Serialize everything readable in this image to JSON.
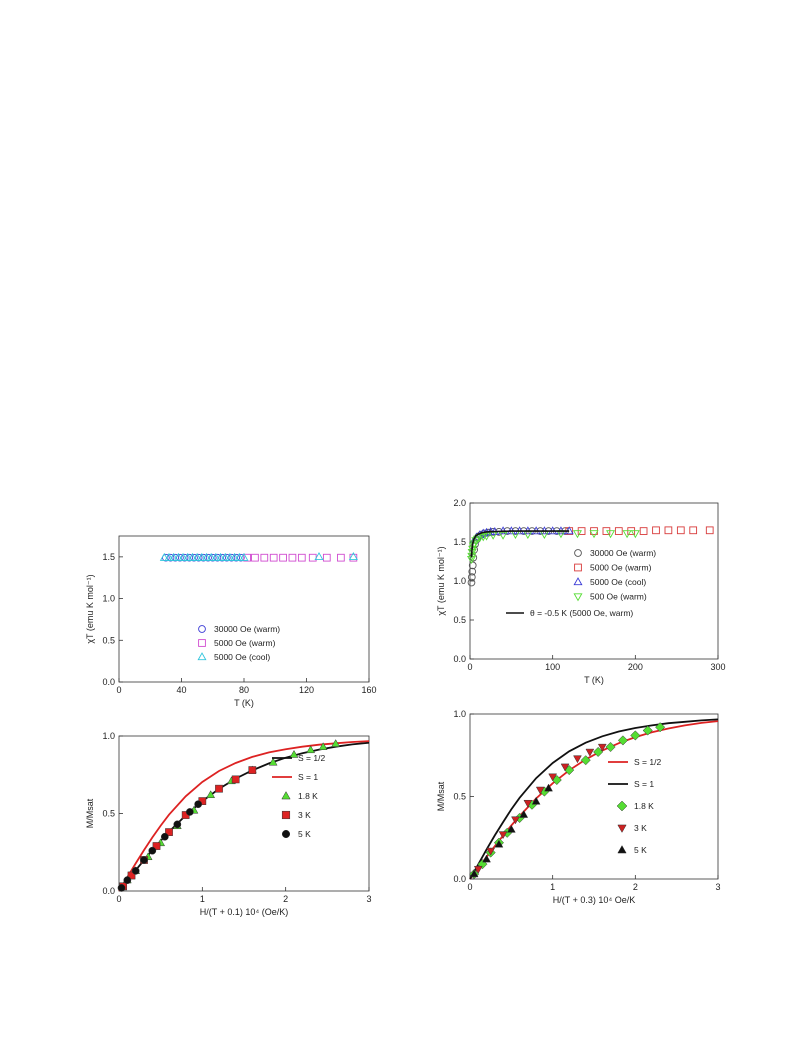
{
  "chart_data": [
    {
      "type": "scatter",
      "xlabel": "T (K)",
      "ylabel": "χT (emu K mol⁻¹)",
      "xlim": [
        0,
        160
      ],
      "ylim": [
        0,
        1.75
      ],
      "xticks": [
        "0",
        "40",
        "80",
        "120",
        "160"
      ],
      "yticks": [
        "0.0",
        "0.5",
        "1.0",
        "1.5"
      ],
      "legend_position": "bottom-center",
      "series": [
        {
          "name": "30000 Oe (warm)",
          "color": "#3b3bd6",
          "marker": "circle",
          "x": [
            30,
            33,
            36,
            39,
            42,
            45,
            48,
            51,
            54,
            57,
            60,
            63,
            66,
            69,
            72,
            75,
            78
          ],
          "y": [
            1.49,
            1.49,
            1.49,
            1.49,
            1.49,
            1.49,
            1.49,
            1.49,
            1.49,
            1.49,
            1.49,
            1.49,
            1.49,
            1.49,
            1.49,
            1.49,
            1.49
          ]
        },
        {
          "name": "5000 Oe (warm)",
          "color": "#d04bd0",
          "marker": "square",
          "x": [
            82,
            87,
            93,
            99,
            105,
            111,
            117,
            124,
            133,
            142,
            150
          ],
          "y": [
            1.49,
            1.49,
            1.49,
            1.49,
            1.49,
            1.49,
            1.49,
            1.49,
            1.49,
            1.49,
            1.49
          ]
        },
        {
          "name": "5000 Oe (cool)",
          "color": "#33c6dd",
          "marker": "triangle",
          "x": [
            29,
            32,
            35,
            38,
            41,
            44,
            47,
            50,
            53,
            56,
            59,
            62,
            65,
            68,
            71,
            74,
            77,
            80,
            128,
            150
          ],
          "y": [
            1.49,
            1.49,
            1.49,
            1.49,
            1.49,
            1.49,
            1.49,
            1.49,
            1.49,
            1.49,
            1.49,
            1.49,
            1.49,
            1.49,
            1.49,
            1.49,
            1.49,
            1.49,
            1.5,
            1.5
          ]
        }
      ]
    },
    {
      "type": "scatter",
      "xlabel": "T (K)",
      "ylabel": "χT (emu K mol⁻¹)",
      "xlim": [
        0,
        300
      ],
      "ylim": [
        0,
        2.0
      ],
      "xticks": [
        "0",
        "100",
        "200",
        "300"
      ],
      "yticks": [
        "0.0",
        "0.5",
        "1.0",
        "1.5",
        "2.0"
      ],
      "legend_position": "center-right",
      "series": [
        {
          "name": "30000 Oe (warm)",
          "color": "#555555",
          "marker": "circle",
          "x": [
            1.8,
            2.2,
            2.7,
            3.3,
            4,
            5,
            6,
            8,
            10,
            13,
            17,
            22,
            28,
            35,
            45,
            55,
            65,
            75,
            85,
            95,
            105,
            115
          ],
          "y": [
            0.98,
            1.05,
            1.12,
            1.2,
            1.3,
            1.4,
            1.47,
            1.53,
            1.57,
            1.59,
            1.61,
            1.62,
            1.63,
            1.63,
            1.64,
            1.64,
            1.64,
            1.64,
            1.64,
            1.64,
            1.64,
            1.64
          ]
        },
        {
          "name": "5000 Oe (warm)",
          "color": "#d83a3a",
          "marker": "square",
          "x": [
            120,
            135,
            150,
            165,
            180,
            195,
            210,
            225,
            240,
            255,
            270,
            290
          ],
          "y": [
            1.64,
            1.64,
            1.64,
            1.64,
            1.64,
            1.64,
            1.64,
            1.65,
            1.65,
            1.65,
            1.65,
            1.65
          ]
        },
        {
          "name": "5000 Oe (cool)",
          "color": "#3b3bd6",
          "marker": "triangle",
          "x": [
            5,
            8,
            12,
            16,
            20,
            25,
            30,
            40,
            50,
            60,
            70,
            80,
            90,
            100,
            110,
            120
          ],
          "y": [
            1.52,
            1.56,
            1.59,
            1.61,
            1.62,
            1.63,
            1.63,
            1.64,
            1.64,
            1.64,
            1.64,
            1.64,
            1.64,
            1.64,
            1.64,
            1.64
          ]
        },
        {
          "name": "500 Oe (warm)",
          "color": "#55dd33",
          "marker": "triangle-down",
          "x": [
            1.8,
            2.2,
            2.6,
            3.2,
            4,
            5,
            7,
            9,
            12,
            16,
            20,
            28,
            40,
            55,
            70,
            90,
            110,
            130,
            150,
            170,
            190,
            200
          ],
          "y": [
            1.28,
            1.32,
            1.37,
            1.41,
            1.45,
            1.48,
            1.52,
            1.54,
            1.56,
            1.57,
            1.58,
            1.59,
            1.59,
            1.6,
            1.6,
            1.6,
            1.61,
            1.61,
            1.61,
            1.61,
            1.61,
            1.61
          ]
        }
      ],
      "curve": {
        "name": "θ = -0.5 K (5000 Oe, warm)",
        "color": "#111111",
        "x": [
          1.8,
          2,
          2.5,
          3,
          4,
          5,
          7,
          10,
          15,
          20,
          30,
          50,
          80,
          120
        ],
        "y": [
          1.3,
          1.34,
          1.41,
          1.46,
          1.51,
          1.54,
          1.58,
          1.6,
          1.62,
          1.63,
          1.635,
          1.64,
          1.64,
          1.64
        ]
      }
    },
    {
      "type": "scatter",
      "xlabel": "H/(T + 0.1) 10⁴ (Oe/K)",
      "ylabel": "M/Msat",
      "xlim": [
        0,
        3
      ],
      "ylim": [
        0,
        1.0
      ],
      "xticks": [
        "0",
        "1",
        "2",
        "3"
      ],
      "yticks": [
        "0.0",
        "0.5",
        "1.0"
      ],
      "legend_position": "right",
      "lines": [
        {
          "name": "S = 1/2",
          "color": "#111111",
          "x": [
            0,
            0.1,
            0.2,
            0.3,
            0.4,
            0.5,
            0.6,
            0.8,
            1.0,
            1.2,
            1.4,
            1.6,
            1.8,
            2.0,
            2.2,
            2.4,
            2.6,
            2.8,
            3.0
          ],
          "y": [
            0,
            0.067,
            0.134,
            0.199,
            0.263,
            0.324,
            0.382,
            0.488,
            0.58,
            0.659,
            0.725,
            0.779,
            0.823,
            0.86,
            0.889,
            0.912,
            0.931,
            0.946,
            0.957
          ]
        },
        {
          "name": "S = 1",
          "color": "#dd2222",
          "x": [
            0,
            0.1,
            0.2,
            0.3,
            0.4,
            0.5,
            0.6,
            0.8,
            1.0,
            1.2,
            1.4,
            1.6,
            1.8,
            2.0,
            2.2,
            2.4,
            2.6,
            2.8,
            3.0
          ],
          "y": [
            0,
            0.089,
            0.178,
            0.264,
            0.345,
            0.422,
            0.492,
            0.611,
            0.703,
            0.774,
            0.826,
            0.865,
            0.894,
            0.915,
            0.931,
            0.944,
            0.953,
            0.961,
            0.967
          ]
        }
      ],
      "series": [
        {
          "name": "1.8 K",
          "color": "#55dd33",
          "marker": "triangle",
          "x": [
            0.1,
            0.2,
            0.35,
            0.5,
            0.7,
            0.9,
            1.1,
            1.35,
            1.6,
            1.85,
            2.1,
            2.3,
            2.45,
            2.6
          ],
          "y": [
            0.07,
            0.13,
            0.22,
            0.31,
            0.42,
            0.52,
            0.62,
            0.71,
            0.78,
            0.83,
            0.88,
            0.91,
            0.93,
            0.95
          ]
        },
        {
          "name": "3 K",
          "color": "#dd2222",
          "marker": "square",
          "x": [
            0.05,
            0.15,
            0.3,
            0.45,
            0.6,
            0.8,
            1.0,
            1.2,
            1.4,
            1.6
          ],
          "y": [
            0.03,
            0.1,
            0.2,
            0.29,
            0.38,
            0.49,
            0.58,
            0.66,
            0.72,
            0.78
          ]
        },
        {
          "name": "5 K",
          "color": "#111111",
          "marker": "circle",
          "x": [
            0.03,
            0.1,
            0.2,
            0.3,
            0.4,
            0.55,
            0.7,
            0.85,
            0.95
          ],
          "y": [
            0.02,
            0.07,
            0.13,
            0.2,
            0.26,
            0.35,
            0.43,
            0.51,
            0.56
          ]
        }
      ]
    },
    {
      "type": "scatter",
      "xlabel": "H/(T + 0.3) 10⁴ Oe/K",
      "ylabel": "M/Msat",
      "xlim": [
        0,
        3
      ],
      "ylim": [
        0,
        1.0
      ],
      "xticks": [
        "0",
        "1",
        "2",
        "3"
      ],
      "yticks": [
        "0.0",
        "0.5",
        "1.0"
      ],
      "legend_position": "right",
      "lines": [
        {
          "name": "S = 1/2",
          "color": "#dd2222",
          "x": [
            0,
            0.1,
            0.2,
            0.3,
            0.4,
            0.5,
            0.6,
            0.8,
            1.0,
            1.2,
            1.4,
            1.6,
            1.8,
            2.0,
            2.2,
            2.4,
            2.6,
            2.8,
            3.0
          ],
          "y": [
            0,
            0.067,
            0.134,
            0.199,
            0.263,
            0.324,
            0.382,
            0.488,
            0.58,
            0.659,
            0.725,
            0.779,
            0.823,
            0.86,
            0.889,
            0.912,
            0.931,
            0.946,
            0.957
          ]
        },
        {
          "name": "S = 1",
          "color": "#111111",
          "x": [
            0,
            0.1,
            0.2,
            0.3,
            0.4,
            0.5,
            0.6,
            0.8,
            1.0,
            1.2,
            1.4,
            1.6,
            1.8,
            2.0,
            2.2,
            2.4,
            2.6,
            2.8,
            3.0
          ],
          "y": [
            0,
            0.089,
            0.178,
            0.264,
            0.345,
            0.422,
            0.492,
            0.611,
            0.703,
            0.774,
            0.826,
            0.865,
            0.894,
            0.915,
            0.931,
            0.944,
            0.953,
            0.961,
            0.967
          ]
        }
      ],
      "series": [
        {
          "name": "1.8 K",
          "color": "#55dd33",
          "marker": "diamond",
          "x": [
            0.05,
            0.15,
            0.25,
            0.35,
            0.45,
            0.6,
            0.75,
            0.9,
            1.05,
            1.2,
            1.4,
            1.55,
            1.7,
            1.85,
            2.0,
            2.15,
            2.3
          ],
          "y": [
            0.03,
            0.09,
            0.16,
            0.22,
            0.28,
            0.37,
            0.45,
            0.53,
            0.6,
            0.66,
            0.72,
            0.77,
            0.8,
            0.84,
            0.87,
            0.9,
            0.92
          ]
        },
        {
          "name": "3 K",
          "color": "#cc2222",
          "marker": "triangle-down",
          "x": [
            0.1,
            0.25,
            0.4,
            0.55,
            0.7,
            0.85,
            1.0,
            1.15,
            1.3,
            1.45,
            1.6
          ],
          "y": [
            0.06,
            0.17,
            0.27,
            0.36,
            0.46,
            0.54,
            0.62,
            0.68,
            0.73,
            0.77,
            0.8
          ]
        },
        {
          "name": "5 K",
          "color": "#111111",
          "marker": "triangle",
          "x": [
            0.05,
            0.2,
            0.35,
            0.5,
            0.65,
            0.8,
            0.95
          ],
          "y": [
            0.03,
            0.12,
            0.21,
            0.3,
            0.39,
            0.47,
            0.55
          ]
        }
      ]
    }
  ]
}
